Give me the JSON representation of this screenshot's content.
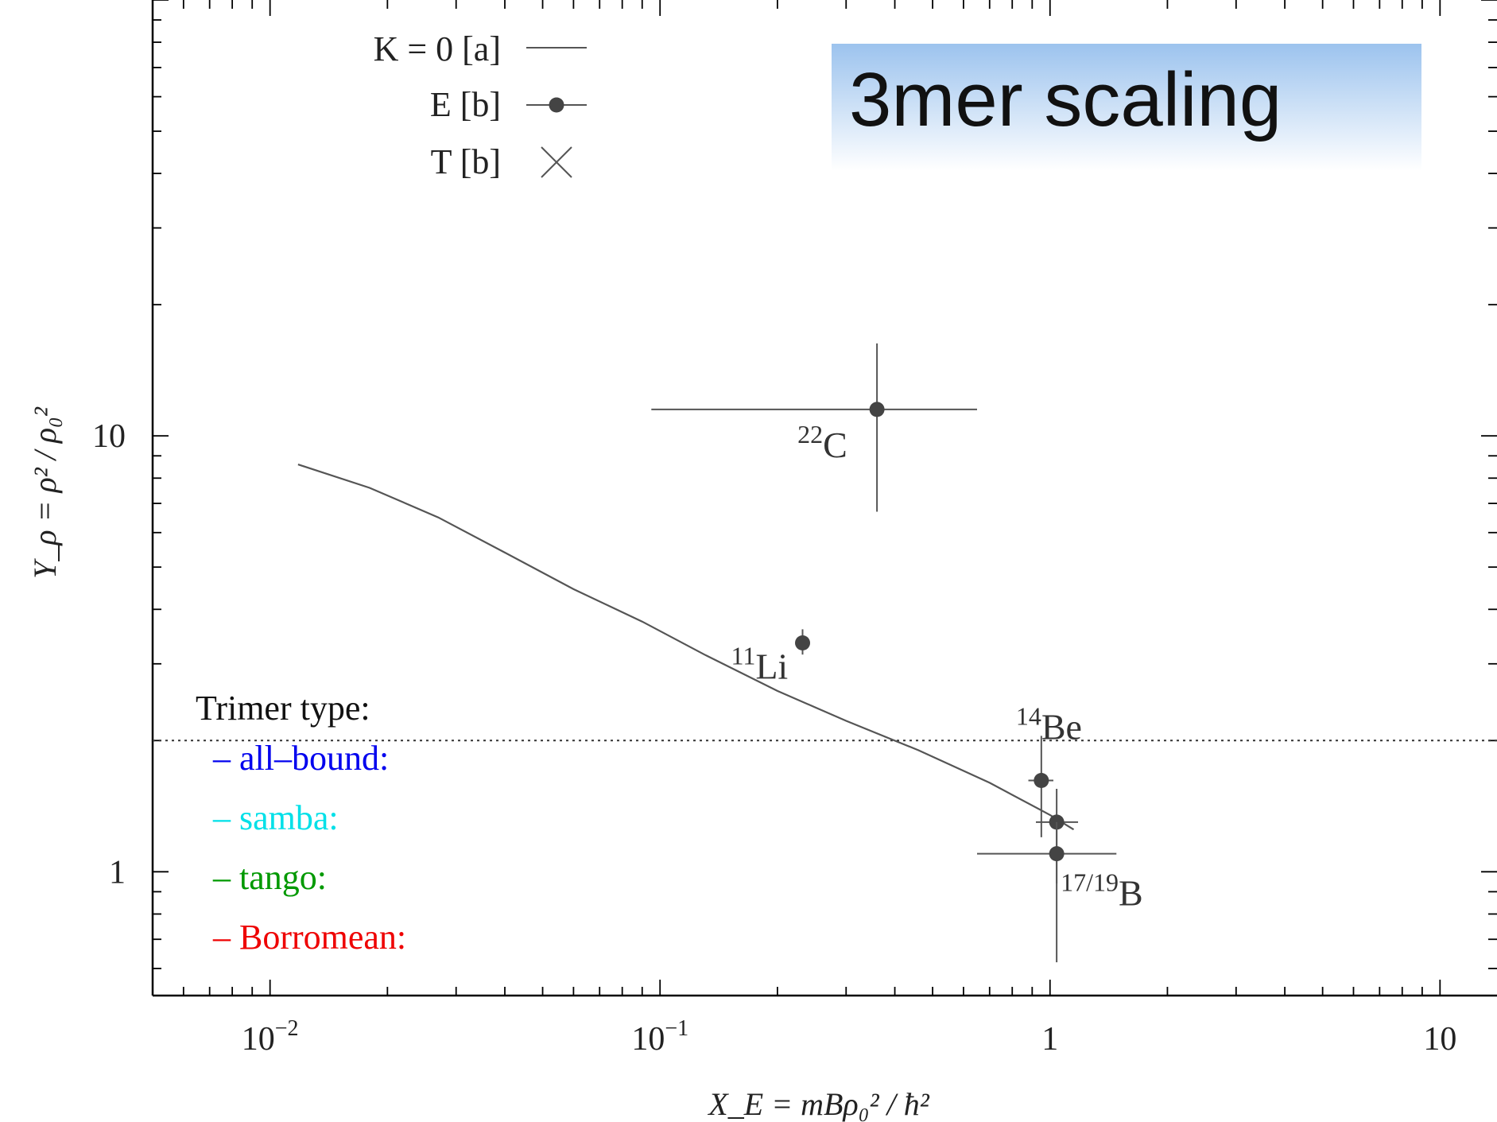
{
  "banner": {
    "text": "3mer scaling"
  },
  "chart_data": {
    "type": "scatter",
    "x_scale": "log",
    "y_scale": "log",
    "xlim": [
      0.005,
      14
    ],
    "ylim": [
      0.52,
      100
    ],
    "xlabel": "X_E = mBρ₀² / ħ²",
    "ylabel": "Y_ρ = ρ² / ρ₀²",
    "x_ticks": [
      {
        "value": 0.01,
        "base": "10",
        "exp": "−2"
      },
      {
        "value": 0.1,
        "base": "10",
        "exp": "−1"
      },
      {
        "value": 1,
        "base": "1",
        "exp": ""
      },
      {
        "value": 10,
        "base": "10",
        "exp": ""
      }
    ],
    "y_ticks": [
      {
        "value": 1,
        "label": "1"
      },
      {
        "value": 10,
        "label": "10"
      }
    ],
    "legend": {
      "placement": "top-left",
      "entries": [
        {
          "label": "K = 0 [a]",
          "marker": "line"
        },
        {
          "label": "E [b]",
          "marker": "point-line"
        },
        {
          "label": "T [b]",
          "marker": "cross"
        }
      ]
    },
    "series": [
      {
        "name": "K = 0 [a]",
        "type": "line",
        "x": [
          0.0118,
          0.018,
          0.027,
          0.04,
          0.06,
          0.09,
          0.13,
          0.2,
          0.3,
          0.46,
          0.7,
          1.0,
          1.15
        ],
        "y": [
          8.6,
          7.6,
          6.5,
          5.4,
          4.45,
          3.75,
          3.15,
          2.6,
          2.22,
          1.9,
          1.6,
          1.35,
          1.25
        ]
      },
      {
        "name": "E [b]",
        "type": "scatter_errorbars",
        "points": [
          {
            "label_mass": "22",
            "label_el": "C",
            "x": 0.36,
            "y": 11.5,
            "xerr": [
              0.095,
              0.65
            ],
            "yerr": [
              6.7,
              16.3
            ]
          },
          {
            "label_mass": "11",
            "label_el": "Li",
            "x": 0.232,
            "y": 3.35,
            "xerr": [
              0.232,
              0.232
            ],
            "yerr": [
              3.15,
              3.6
            ]
          },
          {
            "label_mass": "14",
            "label_el": "Be",
            "x": 0.95,
            "y": 1.62,
            "xerr": [
              0.88,
              1.02
            ],
            "yerr": [
              1.2,
              2.05
            ]
          },
          {
            "label_mass": "",
            "label_el": "",
            "x": 1.04,
            "y": 1.3,
            "xerr": [
              0.92,
              1.18
            ],
            "yerr": [
              0.94,
              1.55
            ]
          },
          {
            "label_mass": "17/19",
            "label_el": "B",
            "x": 1.04,
            "y": 1.1,
            "xerr": [
              0.65,
              1.48
            ],
            "yerr": [
              0.62,
              1.3
            ]
          }
        ]
      }
    ],
    "reference_line": {
      "y": 2.0,
      "style": "dotted"
    },
    "annotation": {
      "title": "Trimer type:",
      "items": [
        {
          "text": "– all–bound:",
          "color": "#0000ee"
        },
        {
          "text": "– samba:",
          "color": "#00e0e8"
        },
        {
          "text": "– tango:",
          "color": "#009900"
        },
        {
          "text": "– Borromean:",
          "color": "#ee0000"
        }
      ]
    },
    "colors": {
      "axis": "#000000",
      "data": "#555555",
      "banner": "#9cc3ee"
    }
  }
}
